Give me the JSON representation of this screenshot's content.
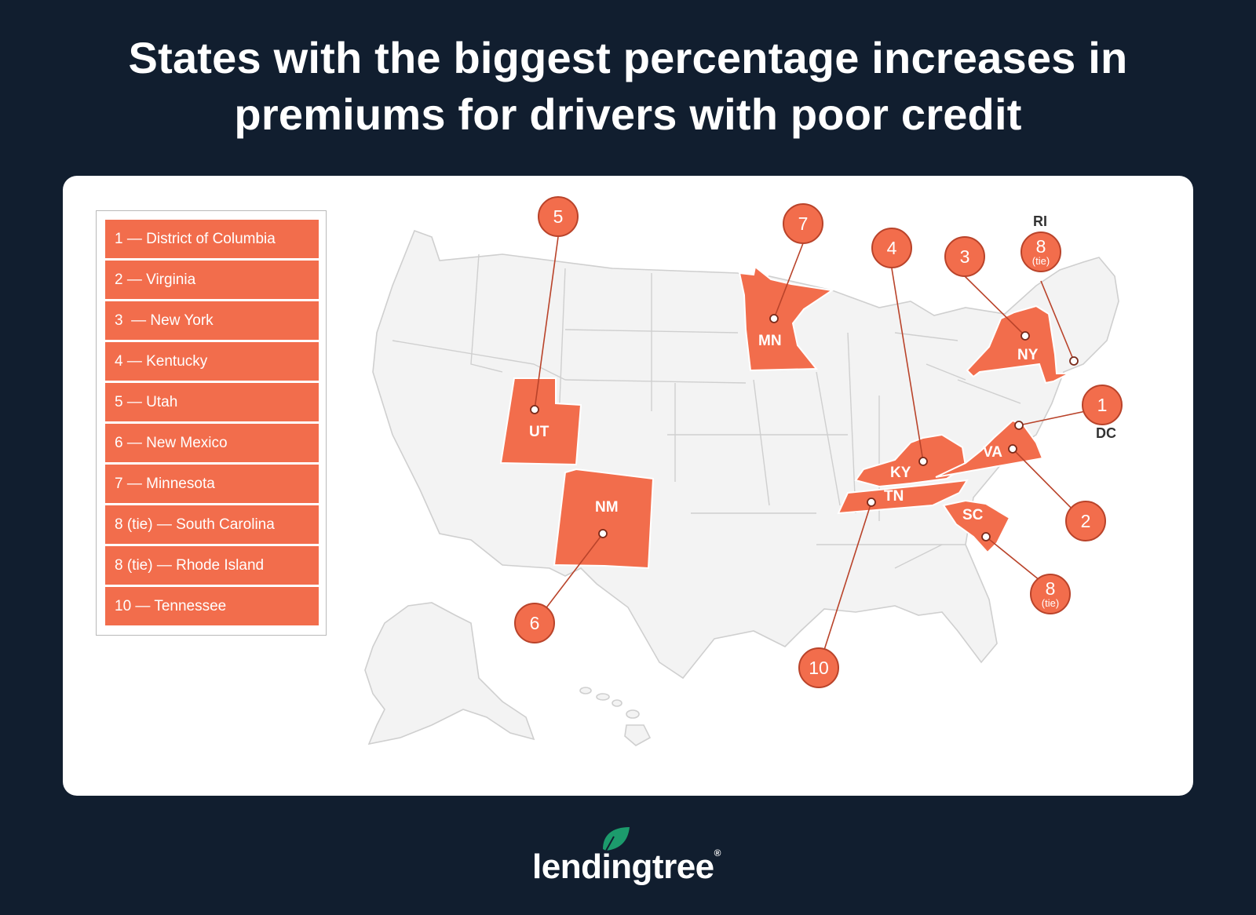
{
  "title": {
    "line1": "States with the biggest percentage increases in",
    "line2": "premiums for drivers with poor credit"
  },
  "legend": [
    "1 — District of Columbia",
    "2 — Virginia",
    "3  — New York",
    "4 — Kentucky",
    "5 — Utah",
    "6 — New Mexico",
    "7 — Minnesota",
    "8 (tie) — South Carolina",
    "8 (tie) — Rhode Island",
    "10 — Tennessee"
  ],
  "map": {
    "highlight_color": "#f26d4c",
    "base_color": "#f3f3f3",
    "states": [
      {
        "abbr": "UT",
        "rank": "5",
        "tie": ""
      },
      {
        "abbr": "MN",
        "rank": "7",
        "tie": ""
      },
      {
        "abbr": "KY",
        "rank": "4",
        "tie": ""
      },
      {
        "abbr": "NY",
        "rank": "3",
        "tie": ""
      },
      {
        "abbr": "RI",
        "rank": "8",
        "tie": "(tie)"
      },
      {
        "abbr": "DC",
        "rank": "1",
        "tie": ""
      },
      {
        "abbr": "VA",
        "rank": "2",
        "tie": ""
      },
      {
        "abbr": "SC",
        "rank": "8",
        "tie": "(tie)"
      },
      {
        "abbr": "TN",
        "rank": "10",
        "tie": ""
      },
      {
        "abbr": "NM",
        "rank": "6",
        "tie": ""
      }
    ]
  },
  "brand": {
    "name": "lendingtree",
    "registered": "®",
    "leaf_color": "#1c9b6c"
  }
}
